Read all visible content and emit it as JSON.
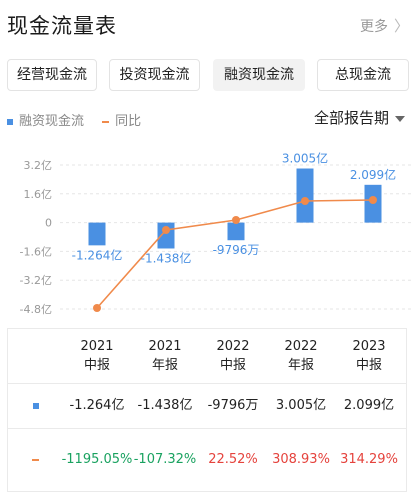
{
  "header": {
    "title": "现金流量表",
    "more": "更多"
  },
  "tabs": [
    {
      "label": "经营现金流",
      "active": false
    },
    {
      "label": "投资现金流",
      "active": false
    },
    {
      "label": "融资现金流",
      "active": true
    },
    {
      "label": "总现金流",
      "active": false
    }
  ],
  "legend": {
    "bar_label": "融资现金流",
    "line_label": "同比"
  },
  "period_selector": {
    "label": "全部报告期"
  },
  "colors": {
    "bar": "#4a90e2",
    "line": "#f08a4b",
    "positive": "#e5433d",
    "negative": "#1aa260"
  },
  "chart_data": {
    "type": "bar",
    "y_ticks": [
      "3.2亿",
      "1.6亿",
      "0",
      "-1.6亿",
      "-3.2亿",
      "-4.8亿"
    ],
    "ylim": [
      -4.8,
      3.2
    ],
    "categories": [
      "2021中报",
      "2021年报",
      "2022中报",
      "2022年报",
      "2023中报"
    ],
    "series": [
      {
        "name": "融资现金流",
        "unit": "亿",
        "values": [
          -1.264,
          -1.438,
          -0.9796,
          3.005,
          2.099
        ],
        "labels": [
          "-1.264亿",
          "-1.438亿",
          "-9796万",
          "3.005亿",
          "2.099亿"
        ]
      },
      {
        "name": "同比",
        "unit": "%",
        "values": [
          -1195.05,
          -107.32,
          22.52,
          308.93,
          314.29
        ]
      }
    ]
  },
  "table": {
    "columns": [
      {
        "year": "2021",
        "period": "中报"
      },
      {
        "year": "2021",
        "period": "年报"
      },
      {
        "year": "2022",
        "period": "中报"
      },
      {
        "year": "2022",
        "period": "年报"
      },
      {
        "year": "2023",
        "period": "中报"
      }
    ],
    "values": [
      "-1.264亿",
      "-1.438亿",
      "-9796万",
      "3.005亿",
      "2.099亿"
    ],
    "pct": [
      {
        "text": "-1195.05%",
        "sign": "neg"
      },
      {
        "text": "-107.32%",
        "sign": "neg"
      },
      {
        "text": "22.52%",
        "sign": "pos"
      },
      {
        "text": "308.93%",
        "sign": "pos"
      },
      {
        "text": "314.29%",
        "sign": "pos"
      }
    ]
  }
}
